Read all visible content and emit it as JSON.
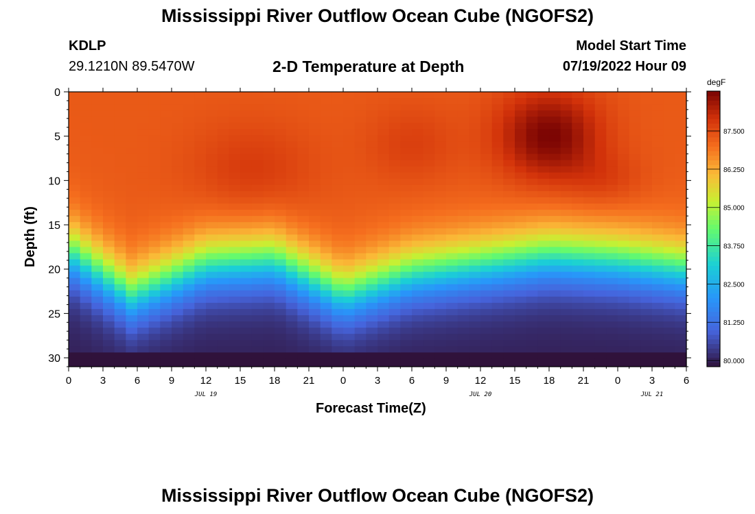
{
  "header": {
    "title": "Mississippi River Outflow Ocean Cube (NGOFS2)",
    "station_id": "KDLP",
    "station_coords": "29.1210N  89.5470W",
    "subtitle": "2-D Temperature at Depth",
    "model_start_label": "Model Start Time",
    "model_start_value": "07/19/2022 Hour 09"
  },
  "footer": {
    "title": "Mississippi River Outflow Ocean Cube (NGOFS2)"
  },
  "chart_data": {
    "type": "heatmap",
    "title": "2-D Temperature at Depth",
    "xlabel": "Forecast Time(Z)",
    "ylabel": "Depth (ft)",
    "x_tick_labels": [
      "0",
      "3",
      "6",
      "9",
      "12",
      "15",
      "18",
      "21",
      "0",
      "3",
      "6",
      "9",
      "12",
      "15",
      "18",
      "21",
      "0",
      "3",
      "6"
    ],
    "x_range_hours": [
      0,
      54
    ],
    "date_labels": [
      {
        "text": "JUL 19",
        "hour": 12
      },
      {
        "text": "JUL 20",
        "hour": 36
      },
      {
        "text": "JUL 21",
        "hour": 51
      }
    ],
    "y_range": [
      0,
      31
    ],
    "y_ticks": [
      0,
      5,
      10,
      15,
      20,
      25,
      30
    ],
    "colorbar": {
      "units": "degF",
      "range": [
        79.8,
        88.8
      ],
      "tick_values": [
        80.0,
        81.25,
        82.5,
        83.75,
        85.0,
        86.25,
        87.5
      ],
      "tick_labels": [
        "80.000",
        "81.250",
        "82.500",
        "83.750",
        "85.000",
        "86.250",
        "87.500"
      ]
    },
    "thermocline_depth_ft": [
      {
        "hour": 0,
        "depth": 15.5
      },
      {
        "hour": 5.5,
        "depth": 20.5
      },
      {
        "hour": 12,
        "depth": 17.0
      },
      {
        "hour": 18,
        "depth": 16.5
      },
      {
        "hour": 24,
        "depth": 20.5
      },
      {
        "hour": 30,
        "depth": 18.0
      },
      {
        "hour": 36,
        "depth": 17.0
      },
      {
        "hour": 42,
        "depth": 16.0
      },
      {
        "hour": 48,
        "depth": 16.5
      },
      {
        "hour": 54,
        "depth": 17.5
      }
    ],
    "surface_temp_degF": 87.3,
    "bottom_temp_degF": 80.0,
    "warm_core": {
      "hour": 42,
      "depth": 5,
      "temp_degF": 88.8
    }
  }
}
